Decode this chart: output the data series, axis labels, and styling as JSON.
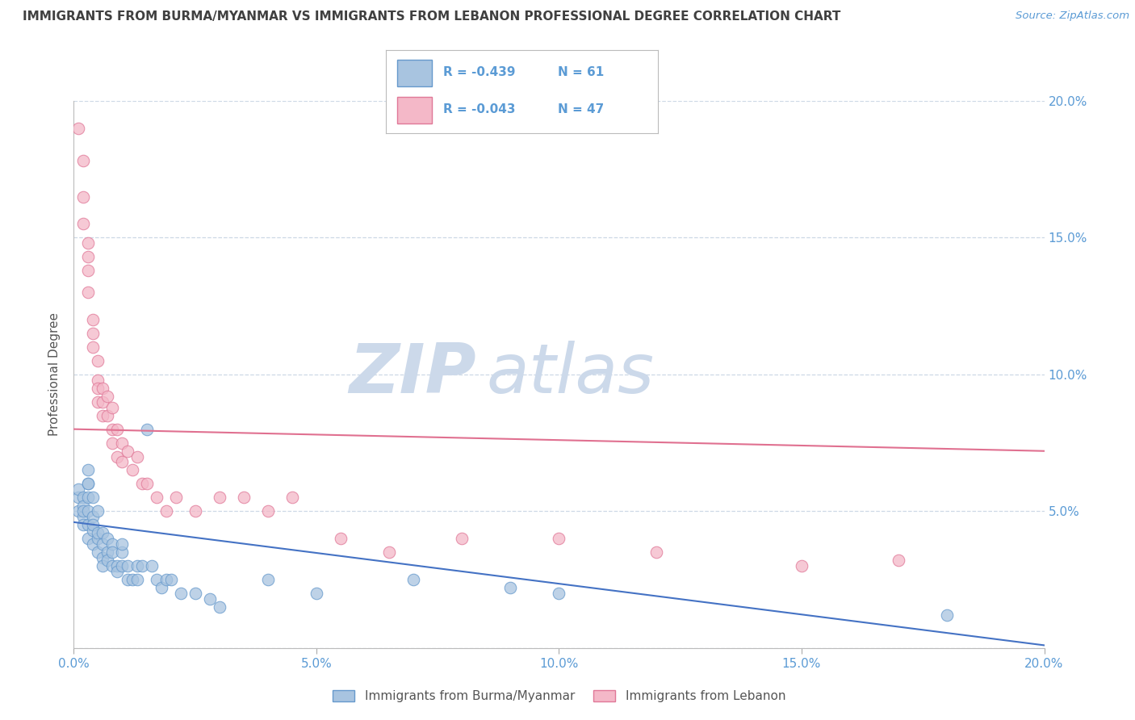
{
  "title": "IMMIGRANTS FROM BURMA/MYANMAR VS IMMIGRANTS FROM LEBANON PROFESSIONAL DEGREE CORRELATION CHART",
  "source_text": "Source: ZipAtlas.com",
  "ylabel": "Professional Degree",
  "xlim": [
    0.0,
    0.2
  ],
  "ylim": [
    0.0,
    0.2
  ],
  "xticks": [
    0.0,
    0.05,
    0.1,
    0.15,
    0.2
  ],
  "yticks": [
    0.0,
    0.05,
    0.1,
    0.15,
    0.2
  ],
  "xticklabels": [
    "0.0%",
    "5.0%",
    "10.0%",
    "15.0%",
    "20.0%"
  ],
  "right_yticklabels": [
    "",
    "5.0%",
    "10.0%",
    "15.0%",
    "20.0%"
  ],
  "blue_color": "#a8c4e0",
  "blue_edge_color": "#6699cc",
  "pink_color": "#f4b8c8",
  "pink_edge_color": "#e07898",
  "blue_line_color": "#4472c4",
  "pink_line_color": "#e07090",
  "title_color": "#404040",
  "axis_color": "#5b9bd5",
  "watermark_color": "#ccd9ea",
  "legend_R_blue": "-0.439",
  "legend_N_blue": "61",
  "legend_R_pink": "-0.043",
  "legend_N_pink": "47",
  "legend_label_blue": "Immigrants from Burma/Myanmar",
  "legend_label_pink": "Immigrants from Lebanon",
  "blue_x": [
    0.001,
    0.001,
    0.001,
    0.002,
    0.002,
    0.002,
    0.002,
    0.002,
    0.003,
    0.003,
    0.003,
    0.003,
    0.003,
    0.003,
    0.003,
    0.004,
    0.004,
    0.004,
    0.004,
    0.004,
    0.005,
    0.005,
    0.005,
    0.005,
    0.006,
    0.006,
    0.006,
    0.006,
    0.007,
    0.007,
    0.007,
    0.008,
    0.008,
    0.008,
    0.009,
    0.009,
    0.01,
    0.01,
    0.01,
    0.011,
    0.011,
    0.012,
    0.013,
    0.013,
    0.014,
    0.015,
    0.016,
    0.017,
    0.018,
    0.019,
    0.02,
    0.022,
    0.025,
    0.028,
    0.03,
    0.04,
    0.05,
    0.07,
    0.09,
    0.1,
    0.18
  ],
  "blue_y": [
    0.055,
    0.058,
    0.05,
    0.055,
    0.048,
    0.052,
    0.045,
    0.05,
    0.065,
    0.06,
    0.055,
    0.05,
    0.045,
    0.04,
    0.06,
    0.048,
    0.043,
    0.038,
    0.055,
    0.045,
    0.04,
    0.035,
    0.05,
    0.042,
    0.038,
    0.033,
    0.042,
    0.03,
    0.035,
    0.04,
    0.032,
    0.038,
    0.03,
    0.035,
    0.03,
    0.028,
    0.035,
    0.03,
    0.038,
    0.03,
    0.025,
    0.025,
    0.03,
    0.025,
    0.03,
    0.08,
    0.03,
    0.025,
    0.022,
    0.025,
    0.025,
    0.02,
    0.02,
    0.018,
    0.015,
    0.025,
    0.02,
    0.025,
    0.022,
    0.02,
    0.012
  ],
  "pink_x": [
    0.001,
    0.002,
    0.002,
    0.002,
    0.003,
    0.003,
    0.003,
    0.003,
    0.004,
    0.004,
    0.004,
    0.005,
    0.005,
    0.005,
    0.005,
    0.006,
    0.006,
    0.006,
    0.007,
    0.007,
    0.008,
    0.008,
    0.008,
    0.009,
    0.009,
    0.01,
    0.01,
    0.011,
    0.012,
    0.013,
    0.014,
    0.015,
    0.017,
    0.019,
    0.021,
    0.025,
    0.03,
    0.035,
    0.04,
    0.045,
    0.055,
    0.065,
    0.08,
    0.1,
    0.12,
    0.15,
    0.17
  ],
  "pink_y": [
    0.19,
    0.178,
    0.165,
    0.155,
    0.148,
    0.143,
    0.138,
    0.13,
    0.12,
    0.115,
    0.11,
    0.105,
    0.098,
    0.095,
    0.09,
    0.095,
    0.09,
    0.085,
    0.092,
    0.085,
    0.08,
    0.088,
    0.075,
    0.08,
    0.07,
    0.075,
    0.068,
    0.072,
    0.065,
    0.07,
    0.06,
    0.06,
    0.055,
    0.05,
    0.055,
    0.05,
    0.055,
    0.055,
    0.05,
    0.055,
    0.04,
    0.035,
    0.04,
    0.04,
    0.035,
    0.03,
    0.032
  ],
  "blue_line_x0": 0.0,
  "blue_line_x1": 0.2,
  "blue_line_y0": 0.046,
  "blue_line_y1": 0.001,
  "pink_line_x0": 0.0,
  "pink_line_x1": 0.2,
  "pink_line_y0": 0.08,
  "pink_line_y1": 0.072
}
